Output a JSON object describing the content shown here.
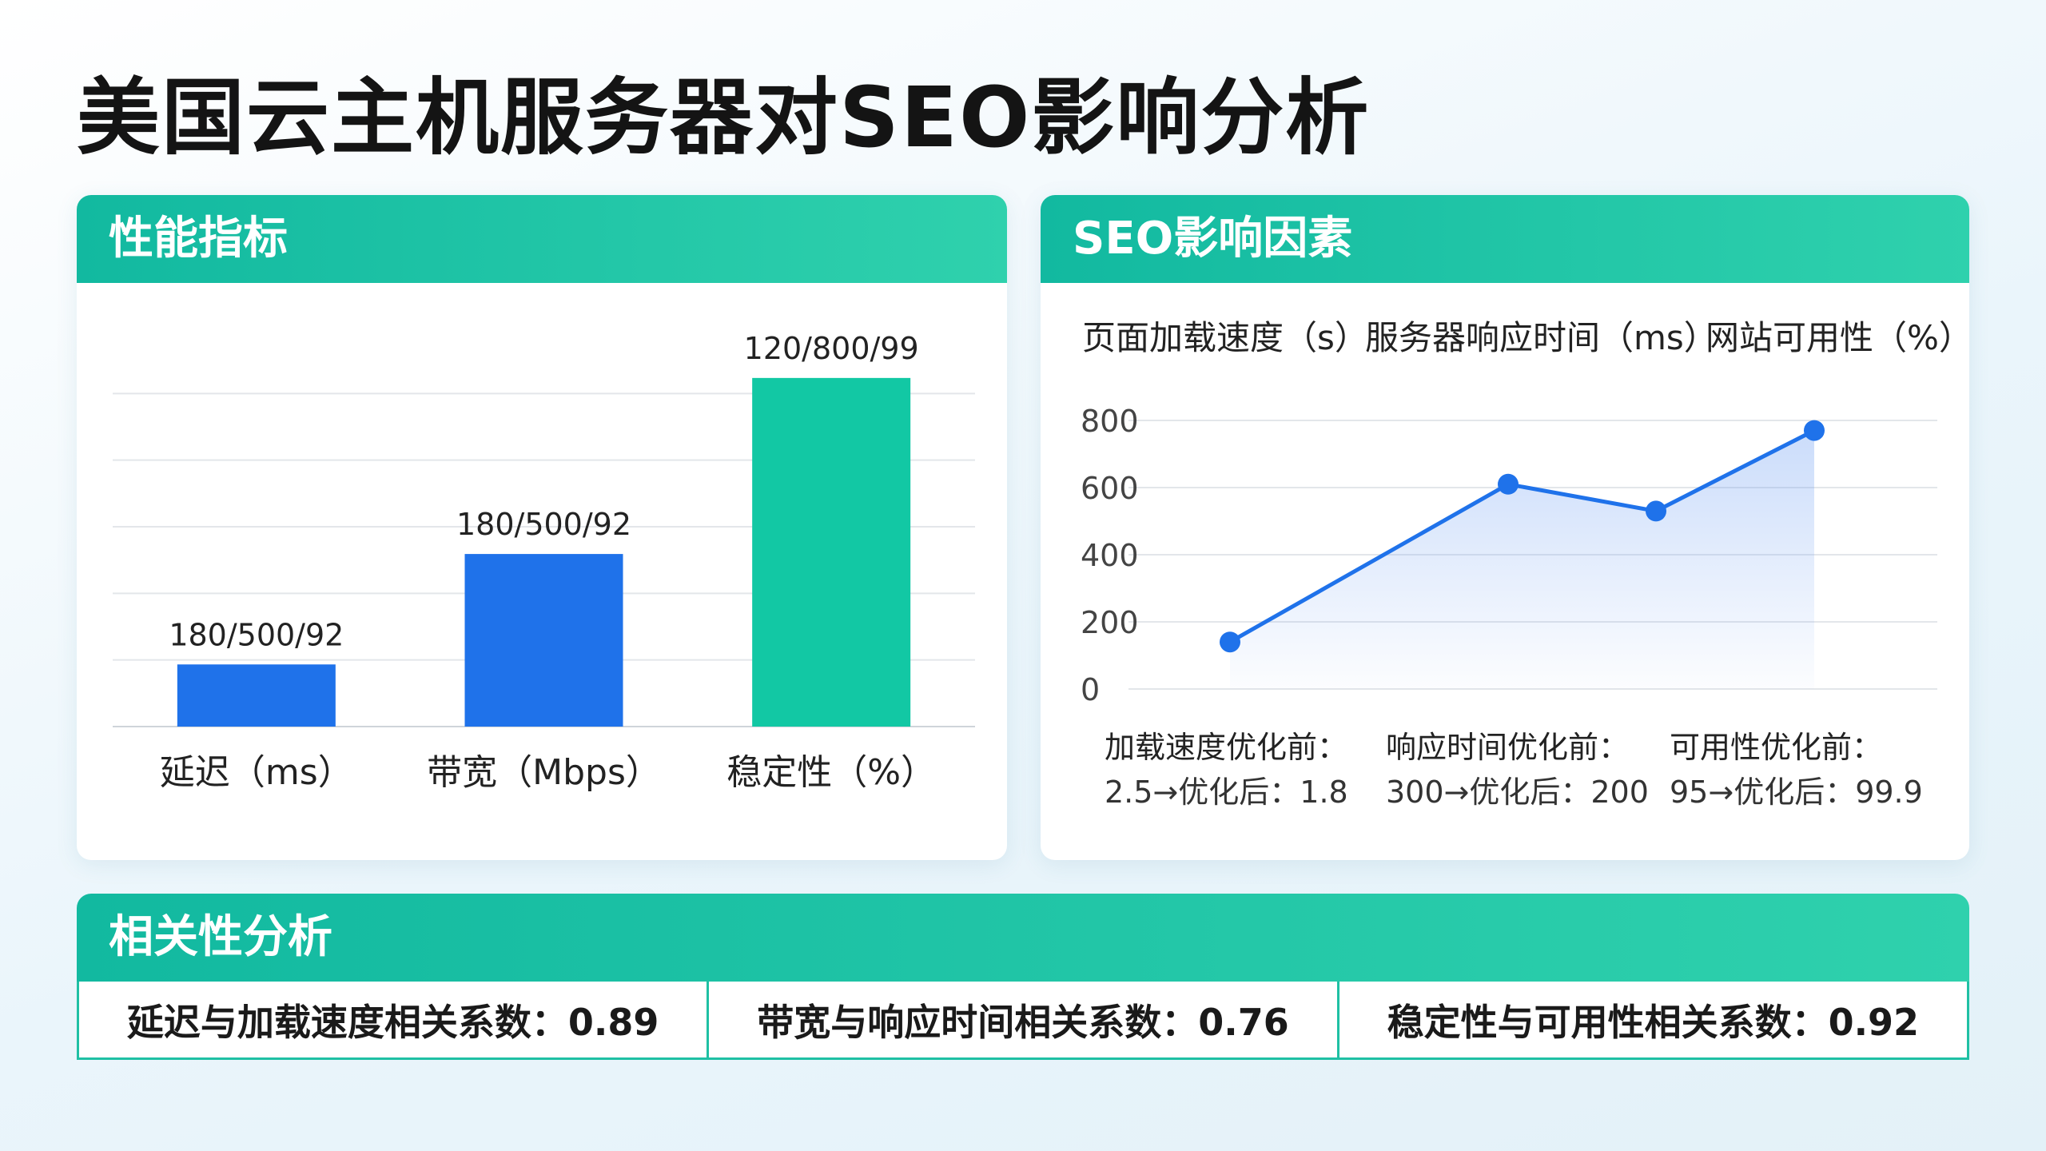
{
  "title": "美国云主机服务器对SEO影响分析",
  "colors": {
    "primary_blue": "#1f72ea",
    "teal": "#12c8a4",
    "header_start": "#12b9a0",
    "header_end": "#2fd1ad"
  },
  "perf": {
    "header": "性能指标"
  },
  "seo": {
    "header": "SEO影响因素"
  },
  "corr": {
    "header": "相关性分析",
    "items": [
      "延迟与加载速度相关系数：0.89",
      "带宽与响应时间相关系数：0.76",
      "稳定性与可用性相关系数：0.92"
    ]
  },
  "chart_data": [
    {
      "type": "bar",
      "categories": [
        "延迟（ms）",
        "带宽（Mbps）",
        "稳定性（%）"
      ],
      "values": [
        18,
        50,
        101
      ],
      "data_labels": [
        "180/500/92",
        "180/500/92",
        "120/800/99"
      ],
      "bar_colors": [
        "#1f72ea",
        "#1f72ea",
        "#12c8a4"
      ],
      "ylim": [
        0,
        110
      ],
      "grid": true,
      "title": "",
      "xlabel": "",
      "ylabel": ""
    },
    {
      "type": "area",
      "legend": [
        "页面加载速度（s）",
        "服务器响应时间（ms）",
        "网站可用性（%）"
      ],
      "legend_position": "top",
      "x": [
        1,
        2,
        3,
        4
      ],
      "values": [
        140,
        610,
        530,
        770
      ],
      "ylim": [
        0,
        800
      ],
      "yticks": [
        "800",
        "600",
        "400",
        "200",
        "0"
      ],
      "annotations": [
        [
          "加载速度优化前：",
          "2.5→优化后：1.8"
        ],
        [
          "响应时间优化前：",
          "300→优化后：200"
        ],
        [
          "可用性优化前：",
          "95→优化后：99.9"
        ]
      ],
      "line_color": "#1f72ea",
      "grid": true,
      "title": "",
      "xlabel": "",
      "ylabel": ""
    }
  ]
}
